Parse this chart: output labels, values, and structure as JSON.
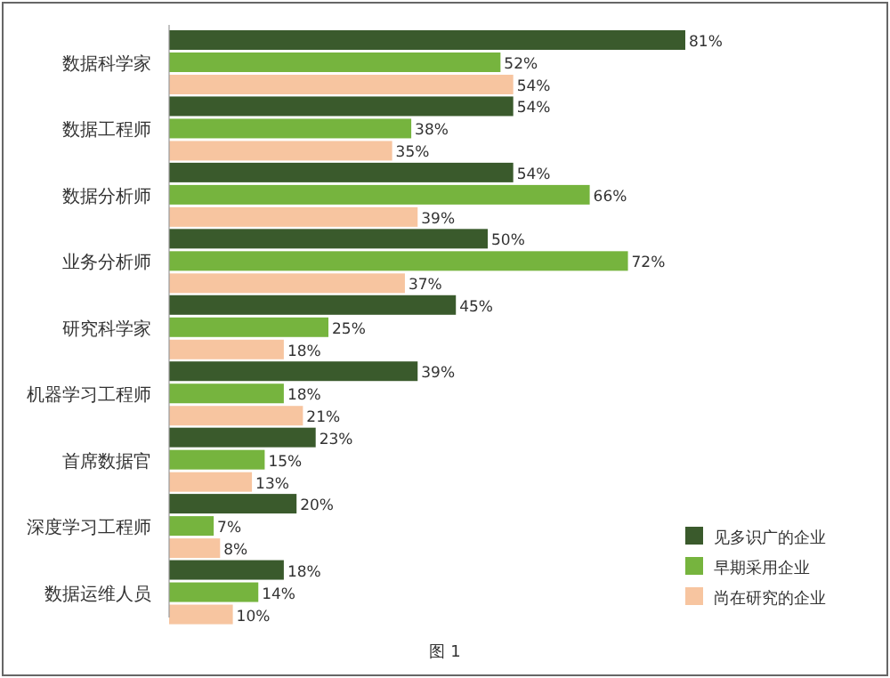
{
  "chart_data": {
    "type": "bar",
    "orientation": "horizontal",
    "legend": "bottom right",
    "categories": [
      "数据科学家",
      "数据工程师",
      "数据分析师",
      "业务分析师",
      "研究科学家",
      "机器学习工程师",
      "首席数据官",
      "深度学习工程师",
      "数据运维人员"
    ],
    "series": [
      {
        "name": "见多识广的企业",
        "color": "#3a5a2c",
        "values": [
          81,
          54,
          54,
          50,
          45,
          39,
          23,
          20,
          18
        ],
        "value_labels": [
          "81%",
          "54%",
          "54%",
          "50%",
          "45%",
          "39%",
          "23%",
          "20%",
          "18%"
        ]
      },
      {
        "name": "早期采用企业",
        "color": "#76b43e",
        "values": [
          52,
          38,
          66,
          72,
          25,
          18,
          15,
          7,
          14
        ],
        "value_labels": [
          "52%",
          "38%",
          "66%",
          "72%",
          "25%",
          "18%",
          "15%",
          "7%",
          "14%"
        ]
      },
      {
        "name": "尚在研究的企业",
        "color": "#f7c5a0",
        "values": [
          54,
          35,
          39,
          37,
          18,
          21,
          13,
          8,
          10
        ],
        "value_labels": [
          "54%",
          "35%",
          "39%",
          "37%",
          "18%",
          "21%",
          "13%",
          "8%",
          "10%"
        ]
      }
    ],
    "annotations": [
      "图 1"
    ]
  }
}
